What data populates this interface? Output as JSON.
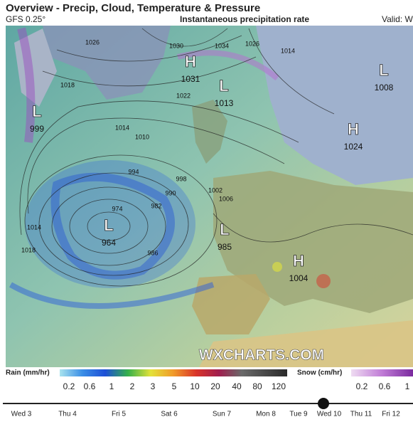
{
  "header": {
    "title": "Overview - Precip, Cloud, Temperature & Pressure",
    "model": "GFS 0.25°",
    "subtitle": "Instantaneous precipitation rate",
    "valid": "Valid: W"
  },
  "pressure_centers": [
    {
      "type": "L",
      "value": "999"
    },
    {
      "type": "H",
      "value": "1031"
    },
    {
      "type": "L",
      "value": "1013"
    },
    {
      "type": "L",
      "value": "1008"
    },
    {
      "type": "H",
      "value": "1024"
    },
    {
      "type": "L",
      "value": "964"
    },
    {
      "type": "L",
      "value": "985"
    },
    {
      "type": "H",
      "value": "1004"
    }
  ],
  "isobar_labels": [
    "1026",
    "1030",
    "1034",
    "1026",
    "1014",
    "1018",
    "1022",
    "1014",
    "1010",
    "994",
    "998",
    "990",
    "982",
    "986",
    "1002",
    "1006",
    "1014",
    "1018",
    "974"
  ],
  "watermark": "WXCHARTS.COM",
  "rain_legend": {
    "title": "Rain (mm/hr)",
    "ticks": [
      "0.2",
      "0.6",
      "1",
      "2",
      "3",
      "5",
      "10",
      "20",
      "40",
      "80",
      "120"
    ]
  },
  "snow_legend": {
    "title": "Snow (cm/hr)",
    "ticks": [
      "0.2",
      "0.6",
      "1"
    ]
  },
  "timeline": [
    "Wed 3",
    "Thu 4",
    "Fri 5",
    "Sat 6",
    "Sun 7",
    "Mon 8",
    "Tue 9",
    "Wed 10",
    "Thu 11",
    "Fri 12"
  ]
}
